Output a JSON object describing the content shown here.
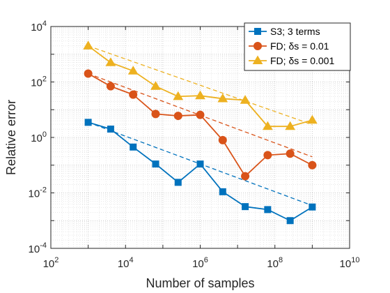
{
  "chart_data": {
    "type": "line",
    "xlabel": "Number of samples",
    "ylabel": "Relative error",
    "xscale": "log",
    "yscale": "log",
    "xlim": [
      100,
      10000000000
    ],
    "ylim": [
      0.0001,
      10000
    ],
    "x_ticks": [
      {
        "value": 100,
        "base": "10",
        "exp": "2"
      },
      {
        "value": 10000,
        "base": "10",
        "exp": "4"
      },
      {
        "value": 1000000,
        "base": "10",
        "exp": "6"
      },
      {
        "value": 100000000,
        "base": "10",
        "exp": "8"
      },
      {
        "value": 10000000000,
        "base": "10",
        "exp": "10"
      }
    ],
    "y_ticks": [
      {
        "value": 0.0001,
        "base": "10",
        "exp": "-4"
      },
      {
        "value": 0.01,
        "base": "10",
        "exp": "-2"
      },
      {
        "value": 1,
        "base": "10",
        "exp": "0"
      },
      {
        "value": 100,
        "base": "10",
        "exp": "2"
      },
      {
        "value": 10000,
        "base": "10",
        "exp": "4"
      }
    ],
    "grid": true,
    "minor_grid": true,
    "legend_position": "top-right",
    "x": [
      1000,
      4000,
      16000,
      64000,
      256000,
      1000000,
      4000000,
      16000000,
      64000000,
      256000000,
      1000000000
    ],
    "series": [
      {
        "name": "S3; 3 terms",
        "color": "#0072BD",
        "marker": "square",
        "values": [
          3.5,
          2.0,
          0.45,
          0.11,
          0.024,
          0.11,
          0.011,
          0.0032,
          0.0025,
          0.001,
          0.0031
        ],
        "fit": [
          [
            1000,
            3.5
          ],
          [
            1000000000,
            0.0035
          ]
        ]
      },
      {
        "name": "FD; δs = 0.01",
        "color": "#D95319",
        "marker": "circle",
        "values": [
          200,
          70,
          35,
          7,
          6,
          6.5,
          0.8,
          0.04,
          0.23,
          0.26,
          0.1
        ],
        "fit": [
          [
            1000,
            200
          ],
          [
            1000000000,
            0.2
          ]
        ]
      },
      {
        "name": "FD; δs = 0.001",
        "color": "#EDB120",
        "marker": "triangle",
        "values": [
          2000,
          500,
          250,
          70,
          30,
          32,
          25,
          22,
          2.5,
          2.5,
          4.2
        ],
        "fit": [
          [
            1000,
            2000
          ],
          [
            1000000000,
            2.9
          ]
        ]
      }
    ]
  }
}
